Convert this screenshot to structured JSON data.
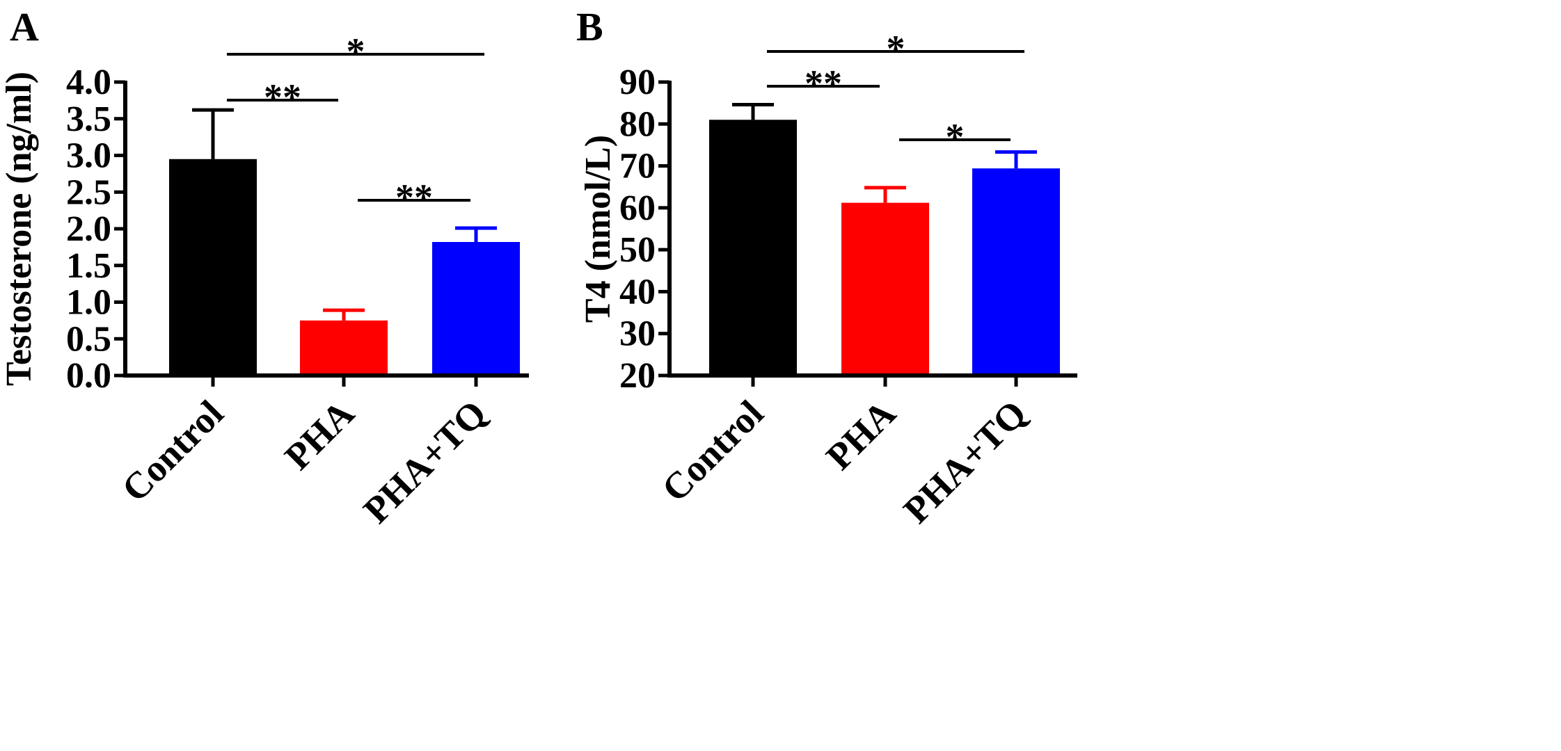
{
  "chart_data": [
    {
      "panel": "A",
      "type": "bar",
      "categories": [
        "Control",
        "PHA",
        "PHA+TQ"
      ],
      "values": [
        2.95,
        0.75,
        1.82
      ],
      "errors": [
        0.67,
        0.14,
        0.19
      ],
      "colors": [
        "#000000",
        "#ff0000",
        "#0000ff"
      ],
      "ylabel": "Testosterone (ng/ml)",
      "xlabel": "",
      "ylim": [
        0.0,
        4.0
      ],
      "yticks": [
        "0.0",
        "0.5",
        "1.0",
        "1.5",
        "2.0",
        "2.5",
        "3.0",
        "3.5",
        "4.0"
      ],
      "yticks_values": [
        0.0,
        0.5,
        1.0,
        1.5,
        2.0,
        2.5,
        3.0,
        3.5,
        4.0
      ],
      "significance": [
        {
          "from": 0,
          "to": 2,
          "label": "*",
          "level": 3
        },
        {
          "from": 0,
          "to": 1,
          "label": "**",
          "level": 2
        },
        {
          "from": 1,
          "to": 2,
          "label": "**",
          "level": 1
        }
      ]
    },
    {
      "panel": "B",
      "type": "bar",
      "categories": [
        "Control",
        "PHA",
        "PHA+TQ"
      ],
      "values": [
        81.0,
        61.2,
        69.4
      ],
      "errors": [
        3.6,
        3.6,
        3.9
      ],
      "colors": [
        "#000000",
        "#ff0000",
        "#0000ff"
      ],
      "ylabel": "T4 (nmol/L)",
      "xlabel": "",
      "ylim": [
        20,
        90
      ],
      "yticks": [
        "20",
        "30",
        "40",
        "50",
        "60",
        "70",
        "80",
        "90"
      ],
      "yticks_values": [
        20,
        30,
        40,
        50,
        60,
        70,
        80,
        90
      ],
      "significance": [
        {
          "from": 0,
          "to": 2,
          "label": "*",
          "level": 3
        },
        {
          "from": 0,
          "to": 1,
          "label": "**",
          "level": 2
        },
        {
          "from": 1,
          "to": 2,
          "label": "*",
          "level": 1
        }
      ]
    }
  ]
}
